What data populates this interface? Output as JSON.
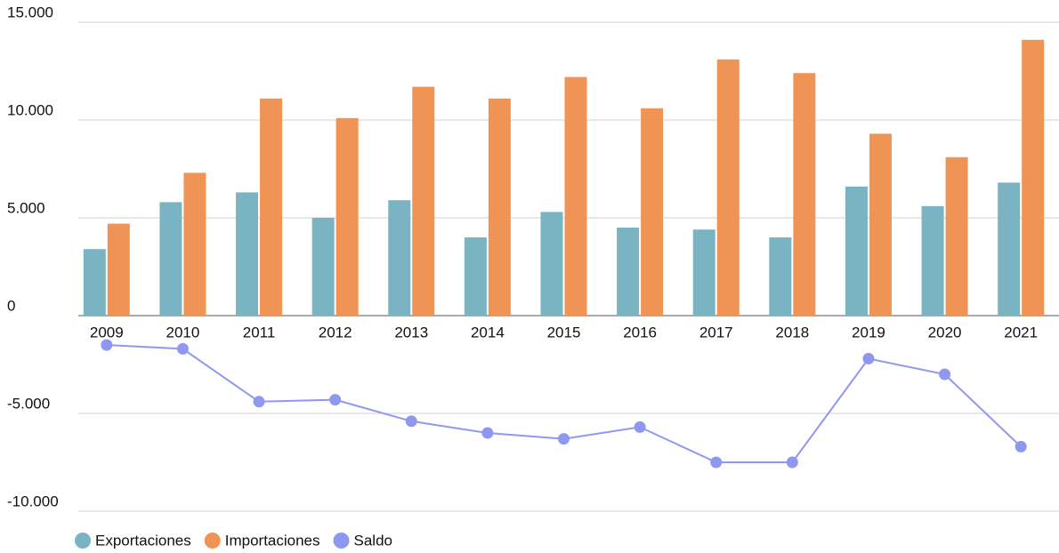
{
  "chart_data": {
    "type": "bar-line",
    "categories": [
      "2009",
      "2010",
      "2011",
      "2012",
      "2013",
      "2014",
      "2015",
      "2016",
      "2017",
      "2018",
      "2019",
      "2020",
      "2021"
    ],
    "series": [
      {
        "name": "Exportaciones",
        "type": "bar",
        "color": "#7ab3c2",
        "values": [
          3400,
          5800,
          6300,
          5000,
          5900,
          4000,
          5300,
          4500,
          4400,
          4000,
          6600,
          5600,
          6800
        ]
      },
      {
        "name": "Importaciones",
        "type": "bar",
        "color": "#f09455",
        "values": [
          4700,
          7300,
          11100,
          10100,
          11700,
          11100,
          12200,
          10600,
          13100,
          12400,
          9300,
          8100,
          14100
        ]
      },
      {
        "name": "Saldo",
        "type": "line",
        "color": "#8f98ef",
        "values": [
          -1500,
          -1700,
          -4400,
          -4300,
          -5400,
          -6000,
          -6300,
          -5700,
          -7500,
          -7500,
          -2200,
          -3000,
          -6700
        ]
      }
    ],
    "ylim": [
      -10000,
      15000
    ],
    "yticks": [
      {
        "value": -10000,
        "label": "-10.000"
      },
      {
        "value": -5000,
        "label": "-5.000"
      },
      0,
      {
        "value": 5000,
        "label": "5.000"
      },
      {
        "value": 10000,
        "label": "10.000"
      },
      {
        "value": 15000,
        "label": "15.000"
      }
    ],
    "grid": true,
    "legend": "bottom-left"
  }
}
